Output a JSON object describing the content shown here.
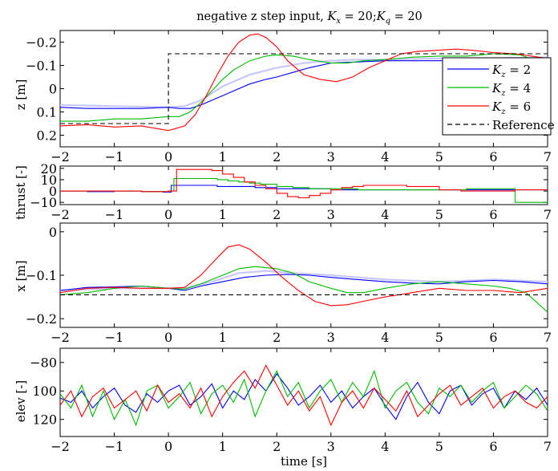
{
  "title": "negative z step input, K_x = 20; K_q = 20",
  "title_parts": {
    "pre": "negative z step input, ",
    "k1": "K",
    "s1": "x",
    "mid": " = 20;",
    "k2": "K",
    "s2": "q",
    "post": " = 20"
  },
  "colors": {
    "Kz2": "#0000ff",
    "Kz4": "#00bb00",
    "Kz6": "#ff0000",
    "reference": "#000000",
    "shade": "#c8c8ff"
  },
  "chart_data": [
    {
      "type": "line",
      "name": "z",
      "ylabel": "z [m]",
      "xlim": [
        -2,
        7
      ],
      "ylim": [
        0.25,
        -0.25
      ],
      "x_ticks": [
        "−2",
        "−1",
        "0",
        "1",
        "2",
        "3",
        "4",
        "5",
        "6",
        "7"
      ],
      "y_ticks": [
        {
          "v": -0.2,
          "label": "−0.2"
        },
        {
          "v": -0.1,
          "label": "−0.1"
        },
        {
          "v": 0,
          "label": "0"
        },
        {
          "v": 0.1,
          "label": "0.1"
        },
        {
          "v": 0.2,
          "label": "0.2"
        }
      ],
      "legend": {
        "placement": "right",
        "entries": [
          {
            "k": "K",
            "sub": "z",
            "rest": " = 2",
            "color": "#0000ff",
            "dash": false
          },
          {
            "k": "K",
            "sub": "z",
            "rest": " = 4",
            "color": "#00bb00",
            "dash": false
          },
          {
            "k": "K",
            "sub": "z",
            "rest": " = 6",
            "color": "#ff0000",
            "dash": false
          },
          {
            "k": "",
            "sub": "",
            "rest": "Reference",
            "color": "#000000",
            "dash": true
          }
        ]
      },
      "series": [
        {
          "key": "shade",
          "color": "#c8c8ff",
          "x": [
            -2,
            -1,
            0,
            0.3,
            0.6,
            1,
            1.5,
            2,
            2.5,
            3,
            3.5,
            4,
            5,
            6,
            7
          ],
          "y": [
            0.07,
            0.075,
            0.08,
            0.075,
            0.05,
            -0.01,
            -0.06,
            -0.09,
            -0.11,
            -0.12,
            -0.125,
            -0.125,
            -0.13,
            -0.13,
            -0.135
          ]
        },
        {
          "key": "Kz2",
          "color": "#0000ff",
          "x": [
            -2,
            -1.5,
            -1,
            -0.5,
            0,
            0.2,
            0.4,
            0.6,
            0.8,
            1,
            1.2,
            1.5,
            1.8,
            2,
            2.3,
            2.6,
            3,
            3.5,
            4,
            4.5,
            5,
            5.5,
            6,
            6.5,
            7
          ],
          "y": [
            0.08,
            0.085,
            0.085,
            0.085,
            0.08,
            0.085,
            0.085,
            0.07,
            0.05,
            0.03,
            0.01,
            -0.02,
            -0.04,
            -0.05,
            -0.07,
            -0.09,
            -0.11,
            -0.115,
            -0.12,
            -0.12,
            -0.12,
            -0.125,
            -0.125,
            -0.12,
            -0.13
          ]
        },
        {
          "key": "Kz4",
          "color": "#00bb00",
          "x": [
            -2,
            -1.5,
            -1,
            -0.5,
            0,
            0.2,
            0.4,
            0.6,
            0.8,
            1,
            1.2,
            1.5,
            1.8,
            2,
            2.3,
            2.6,
            3,
            3.3,
            3.6,
            4,
            4.5,
            5,
            5.5,
            6,
            6.5,
            7
          ],
          "y": [
            0.14,
            0.14,
            0.13,
            0.13,
            0.12,
            0.12,
            0.1,
            0.06,
            0.01,
            -0.04,
            -0.08,
            -0.12,
            -0.14,
            -0.145,
            -0.14,
            -0.125,
            -0.11,
            -0.11,
            -0.12,
            -0.125,
            -0.135,
            -0.14,
            -0.14,
            -0.15,
            -0.145,
            -0.1
          ]
        },
        {
          "key": "Kz6",
          "color": "#ff0000",
          "x": [
            -2,
            -1.5,
            -1,
            -0.5,
            0,
            0.3,
            0.5,
            0.7,
            0.9,
            1.1,
            1.3,
            1.5,
            1.65,
            1.8,
            2,
            2.2,
            2.5,
            2.8,
            3.1,
            3.4,
            3.7,
            4,
            4.3,
            4.6,
            5,
            5.3,
            5.6,
            6,
            6.4,
            7
          ],
          "y": [
            0.16,
            0.155,
            0.165,
            0.16,
            0.18,
            0.16,
            0.11,
            0.03,
            -0.06,
            -0.14,
            -0.2,
            -0.23,
            -0.235,
            -0.22,
            -0.18,
            -0.12,
            -0.06,
            -0.04,
            -0.03,
            -0.05,
            -0.09,
            -0.12,
            -0.15,
            -0.16,
            -0.165,
            -0.17,
            -0.165,
            -0.155,
            -0.15,
            -0.13
          ]
        },
        {
          "key": "reference",
          "color": "#000000",
          "dash": true,
          "x": [
            -2,
            0,
            0,
            7
          ],
          "y": [
            0.15,
            0.15,
            -0.15,
            -0.15
          ]
        }
      ]
    },
    {
      "type": "line",
      "name": "thrust",
      "ylabel": "thrust [-]",
      "xlim": [
        -2,
        7
      ],
      "ylim": [
        -12,
        22
      ],
      "x_ticks": [
        "−2",
        "−1",
        "0",
        "1",
        "2",
        "3",
        "4",
        "5",
        "6",
        "7"
      ],
      "y_ticks": [
        {
          "v": 20,
          "label": "20"
        },
        {
          "v": 10,
          "label": "10"
        },
        {
          "v": 0,
          "label": "0"
        },
        {
          "v": -10,
          "label": "−10"
        }
      ],
      "series": [
        {
          "key": "Kz2",
          "color": "#0000ff",
          "step": true,
          "x": [
            -2,
            -1.5,
            -1,
            -0.5,
            -0.1,
            0.05,
            0.3,
            0.6,
            0.9,
            1.2,
            1.6,
            2,
            2.5,
            3,
            3.5,
            4,
            5,
            6,
            7
          ],
          "y": [
            0,
            -0.5,
            0,
            -0.5,
            -1,
            5,
            5,
            5,
            4,
            4,
            3,
            2,
            2,
            1,
            1,
            1,
            1,
            1,
            0.5
          ]
        },
        {
          "key": "Kz4",
          "color": "#00bb00",
          "step": true,
          "x": [
            -2,
            -1.5,
            -1,
            -0.5,
            0,
            0.1,
            0.6,
            0.9,
            1.1,
            1.3,
            1.5,
            1.7,
            2,
            2.3,
            2.6,
            3,
            3.5,
            4,
            4.3,
            5,
            5.5,
            6,
            6.3,
            6.4,
            7
          ],
          "y": [
            0,
            0,
            0,
            -0.5,
            0,
            11,
            11,
            10,
            9,
            8,
            7,
            6,
            4,
            3,
            2,
            2,
            1,
            1,
            1,
            1,
            2,
            2,
            2,
            -10,
            -9
          ]
        },
        {
          "key": "Kz6",
          "color": "#ff0000",
          "step": true,
          "x": [
            -2,
            -1.5,
            -1,
            -0.5,
            0,
            0.15,
            0.6,
            0.8,
            1,
            1.2,
            1.4,
            1.6,
            1.8,
            2,
            2.2,
            2.4,
            2.6,
            2.8,
            3,
            3.2,
            3.4,
            3.6,
            4,
            4.4,
            5,
            5.4,
            6,
            6.4,
            7
          ],
          "y": [
            0,
            0,
            0,
            -0.5,
            0,
            19,
            19,
            18,
            15,
            12,
            8,
            5,
            2,
            -2,
            -5,
            -6,
            -4,
            -2,
            1,
            3,
            4,
            5,
            5,
            4,
            1,
            0,
            0,
            1,
            1
          ]
        }
      ]
    },
    {
      "type": "line",
      "name": "x",
      "ylabel": "x [m]",
      "xlim": [
        -2,
        7
      ],
      "ylim": [
        -0.22,
        0.02
      ],
      "x_ticks": [
        "−2",
        "−1",
        "0",
        "1",
        "2",
        "3",
        "4",
        "5",
        "6",
        "7"
      ],
      "y_ticks": [
        {
          "v": 0,
          "label": "0"
        },
        {
          "v": -0.1,
          "label": "−0.1"
        },
        {
          "v": -0.2,
          "label": "−0.2"
        }
      ],
      "series": [
        {
          "key": "shade",
          "color": "#c8c8ff",
          "x": [
            -2,
            -1,
            0,
            0.3,
            0.8,
            1.3,
            1.8,
            2.3,
            3,
            3.5,
            4,
            5,
            6,
            7
          ],
          "y": [
            -0.135,
            -0.13,
            -0.13,
            -0.13,
            -0.115,
            -0.095,
            -0.09,
            -0.095,
            -0.1,
            -0.105,
            -0.11,
            -0.115,
            -0.11,
            -0.115
          ]
        },
        {
          "key": "Kz2",
          "color": "#0000ff",
          "x": [
            -2,
            -1.5,
            -1,
            -0.5,
            0,
            0.3,
            0.6,
            1,
            1.4,
            1.8,
            2.2,
            2.6,
            3,
            3.5,
            4,
            4.5,
            5,
            5.5,
            6,
            6.5,
            7
          ],
          "y": [
            -0.135,
            -0.128,
            -0.127,
            -0.125,
            -0.13,
            -0.135,
            -0.125,
            -0.115,
            -0.105,
            -0.1,
            -0.098,
            -0.1,
            -0.105,
            -0.11,
            -0.115,
            -0.118,
            -0.12,
            -0.115,
            -0.112,
            -0.115,
            -0.12
          ]
        },
        {
          "key": "Kz4",
          "color": "#00bb00",
          "x": [
            -2,
            -1.5,
            -1,
            -0.5,
            0,
            0.3,
            0.6,
            1,
            1.3,
            1.6,
            2,
            2.3,
            2.6,
            3,
            3.3,
            3.6,
            4,
            4.5,
            5,
            5.5,
            6,
            6.3,
            6.6,
            7
          ],
          "y": [
            -0.145,
            -0.14,
            -0.13,
            -0.125,
            -0.13,
            -0.132,
            -0.12,
            -0.1,
            -0.085,
            -0.08,
            -0.085,
            -0.095,
            -0.115,
            -0.13,
            -0.14,
            -0.14,
            -0.13,
            -0.12,
            -0.115,
            -0.12,
            -0.125,
            -0.13,
            -0.14,
            -0.185
          ]
        },
        {
          "key": "Kz6",
          "color": "#ff0000",
          "x": [
            -2,
            -1.5,
            -1,
            -0.5,
            0,
            0.3,
            0.6,
            0.9,
            1.1,
            1.3,
            1.5,
            1.8,
            2.1,
            2.4,
            2.7,
            3,
            3.3,
            3.6,
            4,
            4.5,
            5,
            5.5,
            6,
            6.5,
            7
          ],
          "y": [
            -0.14,
            -0.13,
            -0.128,
            -0.13,
            -0.13,
            -0.128,
            -0.1,
            -0.06,
            -0.035,
            -0.03,
            -0.04,
            -0.07,
            -0.105,
            -0.135,
            -0.16,
            -0.17,
            -0.168,
            -0.16,
            -0.15,
            -0.14,
            -0.13,
            -0.135,
            -0.135,
            -0.14,
            -0.13
          ]
        },
        {
          "key": "reference",
          "color": "#000000",
          "dash": true,
          "x": [
            -2,
            7
          ],
          "y": [
            -0.145,
            -0.145
          ]
        }
      ]
    },
    {
      "type": "line",
      "name": "elev",
      "ylabel": "elev [-]",
      "xlabel": "time [s]",
      "xlim": [
        -2,
        7
      ],
      "ylim": [
        -132,
        -70
      ],
      "x_ticks": [
        "−2",
        "−1",
        "0",
        "1",
        "2",
        "3",
        "4",
        "5",
        "6",
        "7"
      ],
      "y_ticks": [
        {
          "v": -80,
          "label": "−80"
        },
        {
          "v": -100,
          "label": "100"
        },
        {
          "v": -120,
          "label": "120"
        }
      ],
      "series": [
        {
          "key": "Kz2",
          "color": "#0000ff",
          "x": [
            -2,
            -1.8,
            -1.6,
            -1.4,
            -1.2,
            -1,
            -0.8,
            -0.6,
            -0.4,
            -0.2,
            0,
            0.2,
            0.4,
            0.6,
            0.8,
            1,
            1.2,
            1.4,
            1.6,
            1.8,
            2,
            2.2,
            2.4,
            2.6,
            2.8,
            3,
            3.2,
            3.4,
            3.6,
            3.8,
            4,
            4.2,
            4.4,
            4.6,
            4.8,
            5,
            5.2,
            5.4,
            5.6,
            5.8,
            6,
            6.2,
            6.4,
            6.6,
            6.8,
            7
          ],
          "y": [
            -105,
            -108,
            -100,
            -112,
            -104,
            -98,
            -110,
            -115,
            -102,
            -108,
            -100,
            -96,
            -110,
            -104,
            -95,
            -112,
            -100,
            -106,
            -92,
            -100,
            -88,
            -98,
            -110,
            -104,
            -96,
            -108,
            -100,
            -112,
            -104,
            -98,
            -110,
            -120,
            -104,
            -94,
            -108,
            -116,
            -100,
            -96,
            -110,
            -102,
            -98,
            -112,
            -100,
            -106,
            -98,
            -110
          ]
        },
        {
          "key": "Kz4",
          "color": "#00bb00",
          "x": [
            -2,
            -1.8,
            -1.6,
            -1.4,
            -1.2,
            -1,
            -0.8,
            -0.6,
            -0.4,
            -0.2,
            0,
            0.2,
            0.4,
            0.6,
            0.8,
            1,
            1.2,
            1.4,
            1.6,
            1.8,
            2,
            2.2,
            2.4,
            2.6,
            2.8,
            3,
            3.2,
            3.4,
            3.6,
            3.8,
            4,
            4.2,
            4.4,
            4.6,
            4.8,
            5,
            5.2,
            5.4,
            5.6,
            5.8,
            6,
            6.2,
            6.4,
            6.6,
            6.8,
            7
          ],
          "y": [
            -102,
            -112,
            -96,
            -118,
            -100,
            -120,
            -106,
            -124,
            -100,
            -96,
            -112,
            -104,
            -94,
            -116,
            -102,
            -96,
            -108,
            -92,
            -118,
            -100,
            -86,
            -104,
            -94,
            -112,
            -100,
            -92,
            -108,
            -94,
            -104,
            -86,
            -112,
            -100,
            -94,
            -108,
            -116,
            -98,
            -104,
            -96,
            -108,
            -100,
            -94,
            -112,
            -104,
            -96,
            -102,
            -114
          ]
        },
        {
          "key": "Kz6",
          "color": "#ff0000",
          "x": [
            -2,
            -1.8,
            -1.6,
            -1.4,
            -1.2,
            -1,
            -0.8,
            -0.6,
            -0.4,
            -0.2,
            0,
            0.2,
            0.4,
            0.6,
            0.8,
            1,
            1.2,
            1.4,
            1.6,
            1.8,
            2,
            2.2,
            2.4,
            2.6,
            2.8,
            3,
            3.2,
            3.4,
            3.6,
            3.8,
            4,
            4.2,
            4.4,
            4.6,
            4.8,
            5,
            5.2,
            5.4,
            5.6,
            5.8,
            6,
            6.2,
            6.4,
            6.6,
            6.8,
            7
          ],
          "y": [
            -110,
            -100,
            -118,
            -104,
            -98,
            -112,
            -106,
            -100,
            -114,
            -96,
            -108,
            -102,
            -112,
            -98,
            -118,
            -104,
            -94,
            -86,
            -98,
            -82,
            -96,
            -110,
            -100,
            -114,
            -104,
            -124,
            -108,
            -100,
            -112,
            -98,
            -106,
            -114,
            -100,
            -118,
            -110,
            -102,
            -96,
            -110,
            -104,
            -98,
            -112,
            -104,
            -100,
            -108,
            -112,
            -104
          ]
        }
      ]
    }
  ]
}
